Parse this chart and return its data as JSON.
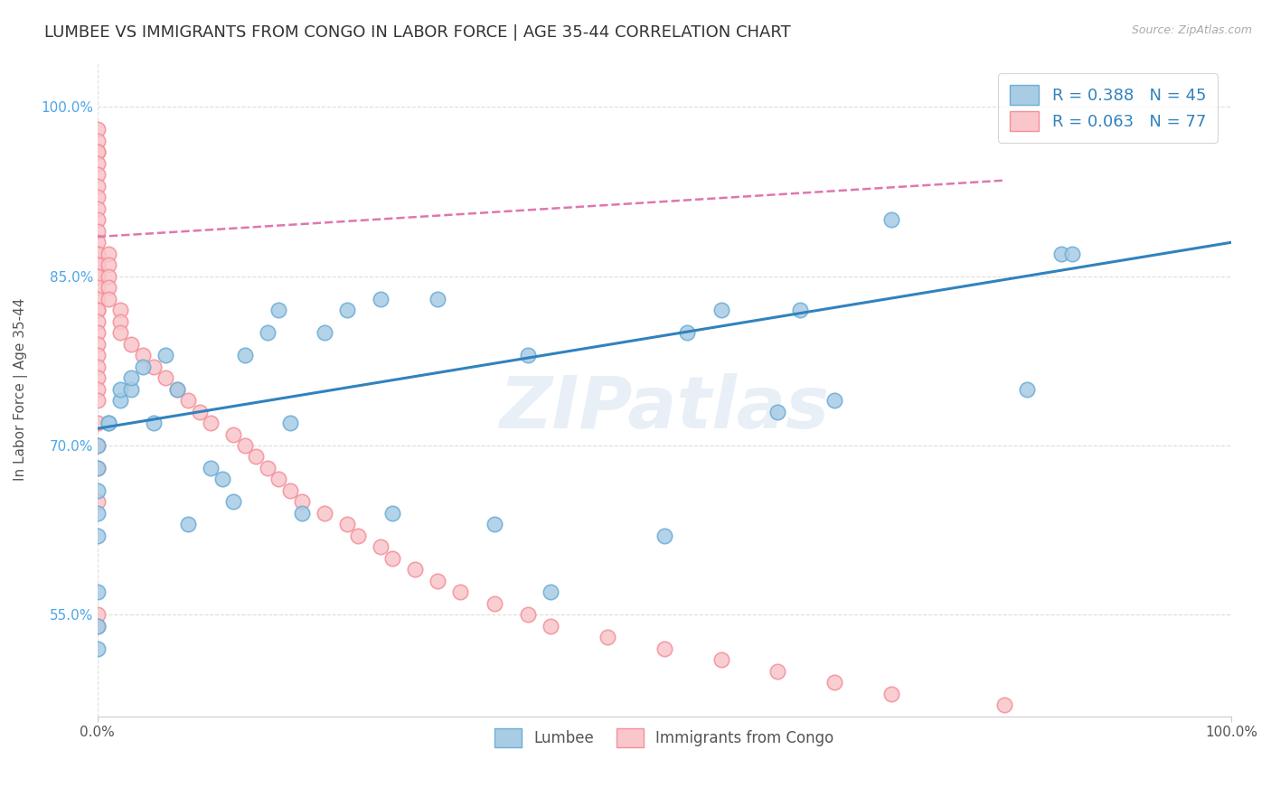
{
  "title": "LUMBEE VS IMMIGRANTS FROM CONGO IN LABOR FORCE | AGE 35-44 CORRELATION CHART",
  "source_text": "Source: ZipAtlas.com",
  "ylabel": "In Labor Force | Age 35-44",
  "xlim": [
    0.0,
    1.0
  ],
  "ylim": [
    0.46,
    1.04
  ],
  "yticks": [
    0.55,
    0.7,
    0.85,
    1.0
  ],
  "ytick_labels": [
    "55.0%",
    "70.0%",
    "85.0%",
    "100.0%"
  ],
  "xticks": [
    0.0,
    1.0
  ],
  "xtick_labels": [
    "0.0%",
    "100.0%"
  ],
  "legend_r1": "R = 0.388",
  "legend_n1": "N = 45",
  "legend_r2": "R = 0.063",
  "legend_n2": "N = 77",
  "blue_color": "#a8cce4",
  "pink_color": "#f9c6cb",
  "blue_edge_color": "#6baed6",
  "pink_edge_color": "#f4909a",
  "blue_line_color": "#3182bd",
  "pink_line_color": "#de77ae",
  "legend_r_color": "#3182bd",
  "legend_n_color": "#333333",
  "ytick_color": "#4da6e8",
  "watermark": "ZIPatlas",
  "blue_scatter_x": [
    0.0,
    0.0,
    0.0,
    0.0,
    0.0,
    0.0,
    0.0,
    0.0,
    0.01,
    0.01,
    0.02,
    0.02,
    0.03,
    0.03,
    0.04,
    0.05,
    0.06,
    0.07,
    0.08,
    0.1,
    0.11,
    0.12,
    0.13,
    0.15,
    0.16,
    0.17,
    0.18,
    0.2,
    0.22,
    0.25,
    0.26,
    0.3,
    0.35,
    0.38,
    0.4,
    0.5,
    0.52,
    0.55,
    0.6,
    0.62,
    0.65,
    0.7,
    0.82,
    0.85,
    0.86
  ],
  "blue_scatter_y": [
    0.52,
    0.54,
    0.57,
    0.62,
    0.64,
    0.66,
    0.68,
    0.7,
    0.72,
    0.72,
    0.74,
    0.75,
    0.75,
    0.76,
    0.77,
    0.72,
    0.78,
    0.75,
    0.63,
    0.68,
    0.67,
    0.65,
    0.78,
    0.8,
    0.82,
    0.72,
    0.64,
    0.8,
    0.82,
    0.83,
    0.64,
    0.83,
    0.63,
    0.78,
    0.57,
    0.62,
    0.8,
    0.82,
    0.73,
    0.82,
    0.74,
    0.9,
    0.75,
    0.87,
    0.87
  ],
  "pink_scatter_x": [
    0.0,
    0.0,
    0.0,
    0.0,
    0.0,
    0.0,
    0.0,
    0.0,
    0.0,
    0.0,
    0.0,
    0.0,
    0.0,
    0.0,
    0.0,
    0.0,
    0.0,
    0.0,
    0.0,
    0.0,
    0.0,
    0.0,
    0.0,
    0.0,
    0.0,
    0.0,
    0.0,
    0.0,
    0.0,
    0.0,
    0.0,
    0.0,
    0.0,
    0.0,
    0.0,
    0.0,
    0.01,
    0.01,
    0.01,
    0.01,
    0.01,
    0.02,
    0.02,
    0.02,
    0.03,
    0.04,
    0.05,
    0.06,
    0.07,
    0.08,
    0.09,
    0.1,
    0.12,
    0.13,
    0.14,
    0.15,
    0.16,
    0.17,
    0.18,
    0.2,
    0.22,
    0.23,
    0.25,
    0.26,
    0.28,
    0.3,
    0.32,
    0.35,
    0.38,
    0.4,
    0.45,
    0.5,
    0.55,
    0.6,
    0.65,
    0.7,
    0.8
  ],
  "pink_scatter_y": [
    0.98,
    0.97,
    0.96,
    0.96,
    0.95,
    0.94,
    0.93,
    0.92,
    0.91,
    0.9,
    0.89,
    0.88,
    0.87,
    0.87,
    0.86,
    0.86,
    0.85,
    0.85,
    0.84,
    0.83,
    0.82,
    0.82,
    0.81,
    0.8,
    0.79,
    0.78,
    0.77,
    0.76,
    0.75,
    0.74,
    0.72,
    0.7,
    0.68,
    0.65,
    0.55,
    0.54,
    0.87,
    0.86,
    0.85,
    0.84,
    0.83,
    0.82,
    0.81,
    0.8,
    0.79,
    0.78,
    0.77,
    0.76,
    0.75,
    0.74,
    0.73,
    0.72,
    0.71,
    0.7,
    0.69,
    0.68,
    0.67,
    0.66,
    0.65,
    0.64,
    0.63,
    0.62,
    0.61,
    0.6,
    0.59,
    0.58,
    0.57,
    0.56,
    0.55,
    0.54,
    0.53,
    0.52,
    0.51,
    0.5,
    0.49,
    0.48,
    0.47
  ],
  "blue_trendline_x": [
    0.0,
    1.0
  ],
  "blue_trendline_y": [
    0.715,
    0.88
  ],
  "pink_trendline_x": [
    0.0,
    0.8
  ],
  "pink_trendline_y": [
    0.885,
    0.935
  ],
  "background_color": "#ffffff",
  "grid_color": "#dddddd",
  "title_fontsize": 13,
  "axis_label_fontsize": 11,
  "tick_fontsize": 11
}
